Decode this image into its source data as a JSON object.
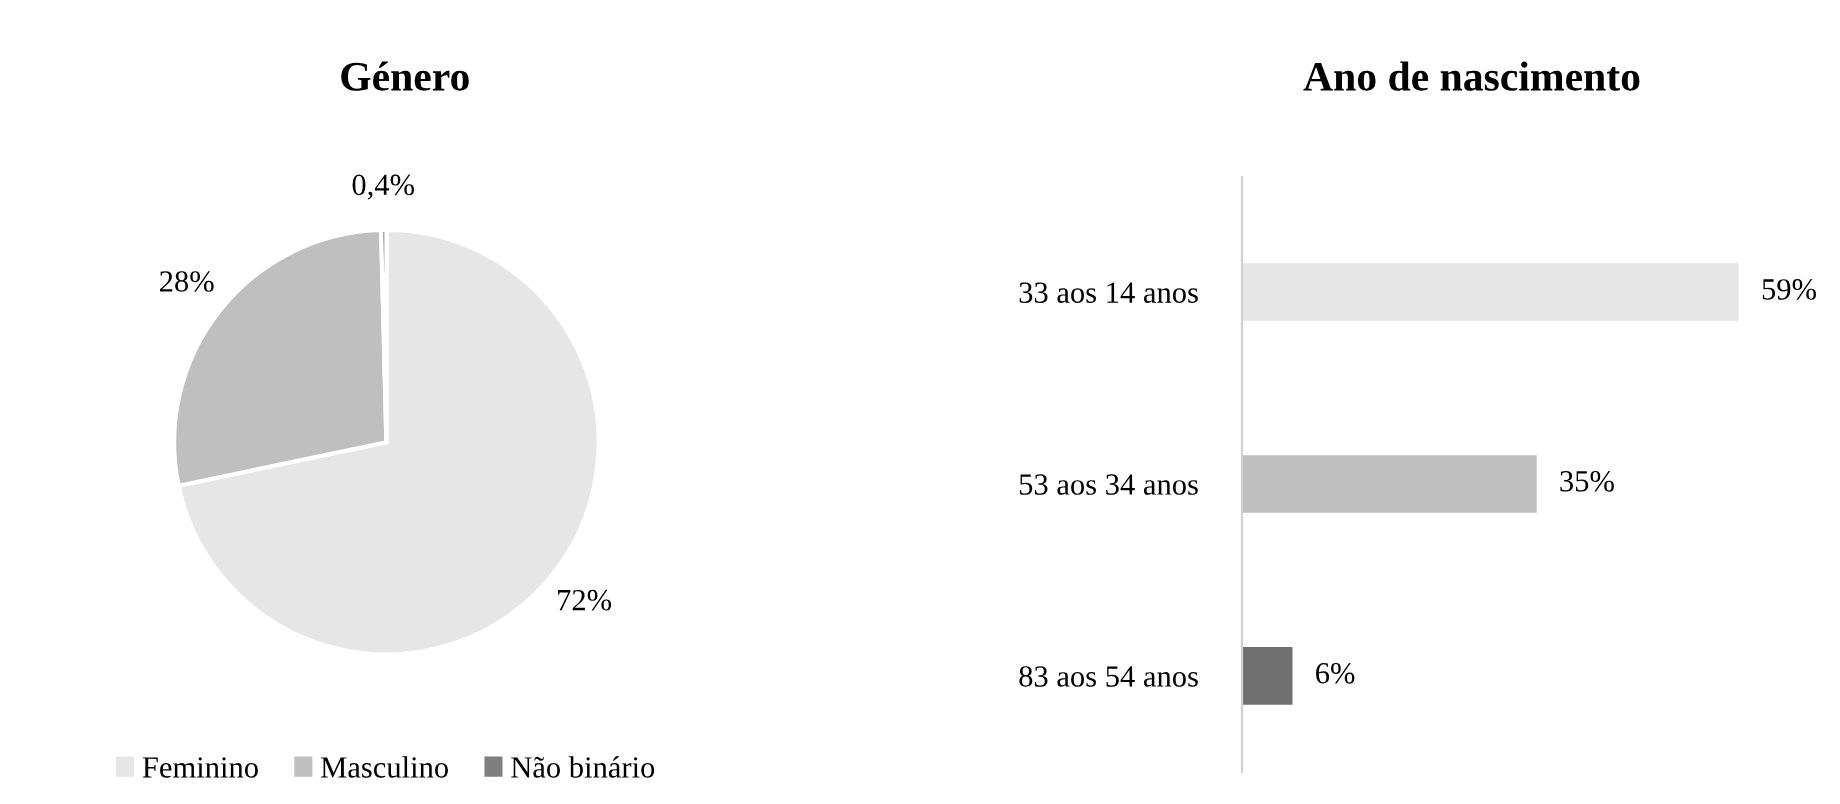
{
  "chart_data": [
    {
      "type": "pie",
      "title": "Género",
      "categories": [
        "Feminino",
        "Masculino",
        "Não binário"
      ],
      "values": [
        72,
        28,
        0.4
      ],
      "colors": [
        "#e6e6e6",
        "#bfbfbf",
        "#7f7f7f"
      ],
      "value_labels": [
        "72%",
        "28%",
        "0,4%"
      ],
      "legend": "bottom"
    },
    {
      "type": "bar",
      "orientation": "horizontal",
      "title": "Ano de nascimento",
      "categories": [
        "33 aos 14 anos",
        "53 aos 34 anos",
        "83 aos 54 anos"
      ],
      "values": [
        59,
        35,
        6
      ],
      "colors": [
        "#e6e6e6",
        "#bfbfbf",
        "#6f6f6f"
      ],
      "value_labels": [
        "59%",
        "35%",
        "6%"
      ],
      "tick_labels": "y"
    }
  ]
}
